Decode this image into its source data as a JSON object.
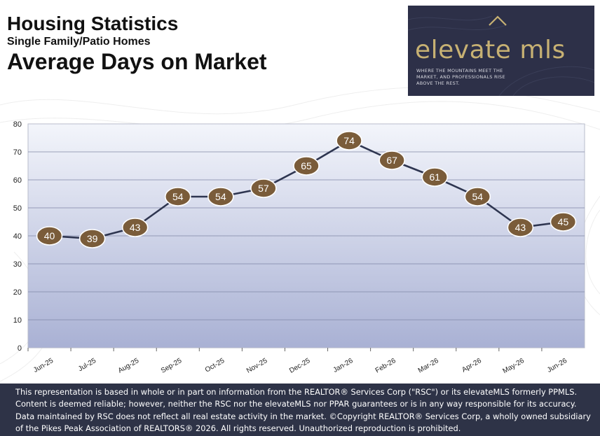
{
  "header": {
    "title": "Housing Statistics",
    "subtitle": "Single Family/Patio Homes",
    "metric": "Average Days on Market"
  },
  "logo": {
    "wordmark": "elevate mls",
    "tagline": "WHERE THE MOUNTAINS MEET THE MARKET, AND PROFESSIONALS RISE ABOVE THE REST.",
    "background": "#2d3048",
    "gold": "#c7b173"
  },
  "chart_data": {
    "type": "line",
    "categories": [
      "Jun-25",
      "Jul-25",
      "Aug-25",
      "Sep-25",
      "Oct-25",
      "Nov-25",
      "Dec-25",
      "Jan-26",
      "Feb-26",
      "Mar-26",
      "Apr-26",
      "May-26",
      "Jun-26"
    ],
    "series": [
      {
        "values": [
          40,
          39,
          43,
          54,
          54,
          57,
          65,
          74,
          67,
          61,
          54,
          43,
          45
        ]
      }
    ],
    "ylim": [
      0,
      80
    ],
    "yticks": [
      0,
      10,
      20,
      30,
      40,
      50,
      60,
      70,
      80
    ],
    "grid": true,
    "line_color": "#2e3550",
    "marker_color": "#7a5c3a",
    "plot_gradient_top": "#f3f5fb",
    "plot_gradient_bottom": "#a9b1d4"
  },
  "footer": {
    "text": "This representation is based in whole or in part on information from the REALTOR® Services Corp (\"RSC\") or its elevateMLS formerly PPMLS.\nContent is deemed reliable; however, neither the RSC nor the elevateMLS nor PPAR guarantees or is in any way responsible for its accuracy.\nData maintained by RSC does not reflect all real estate activity in the market.  ©Copyright REALTOR® Services Corp, a wholly owned subsidiary\nof the Pikes Peak Association of REALTORS® 2026. All rights reserved. Unauthorized reproduction is prohibited.",
    "background": "#2e3347"
  }
}
